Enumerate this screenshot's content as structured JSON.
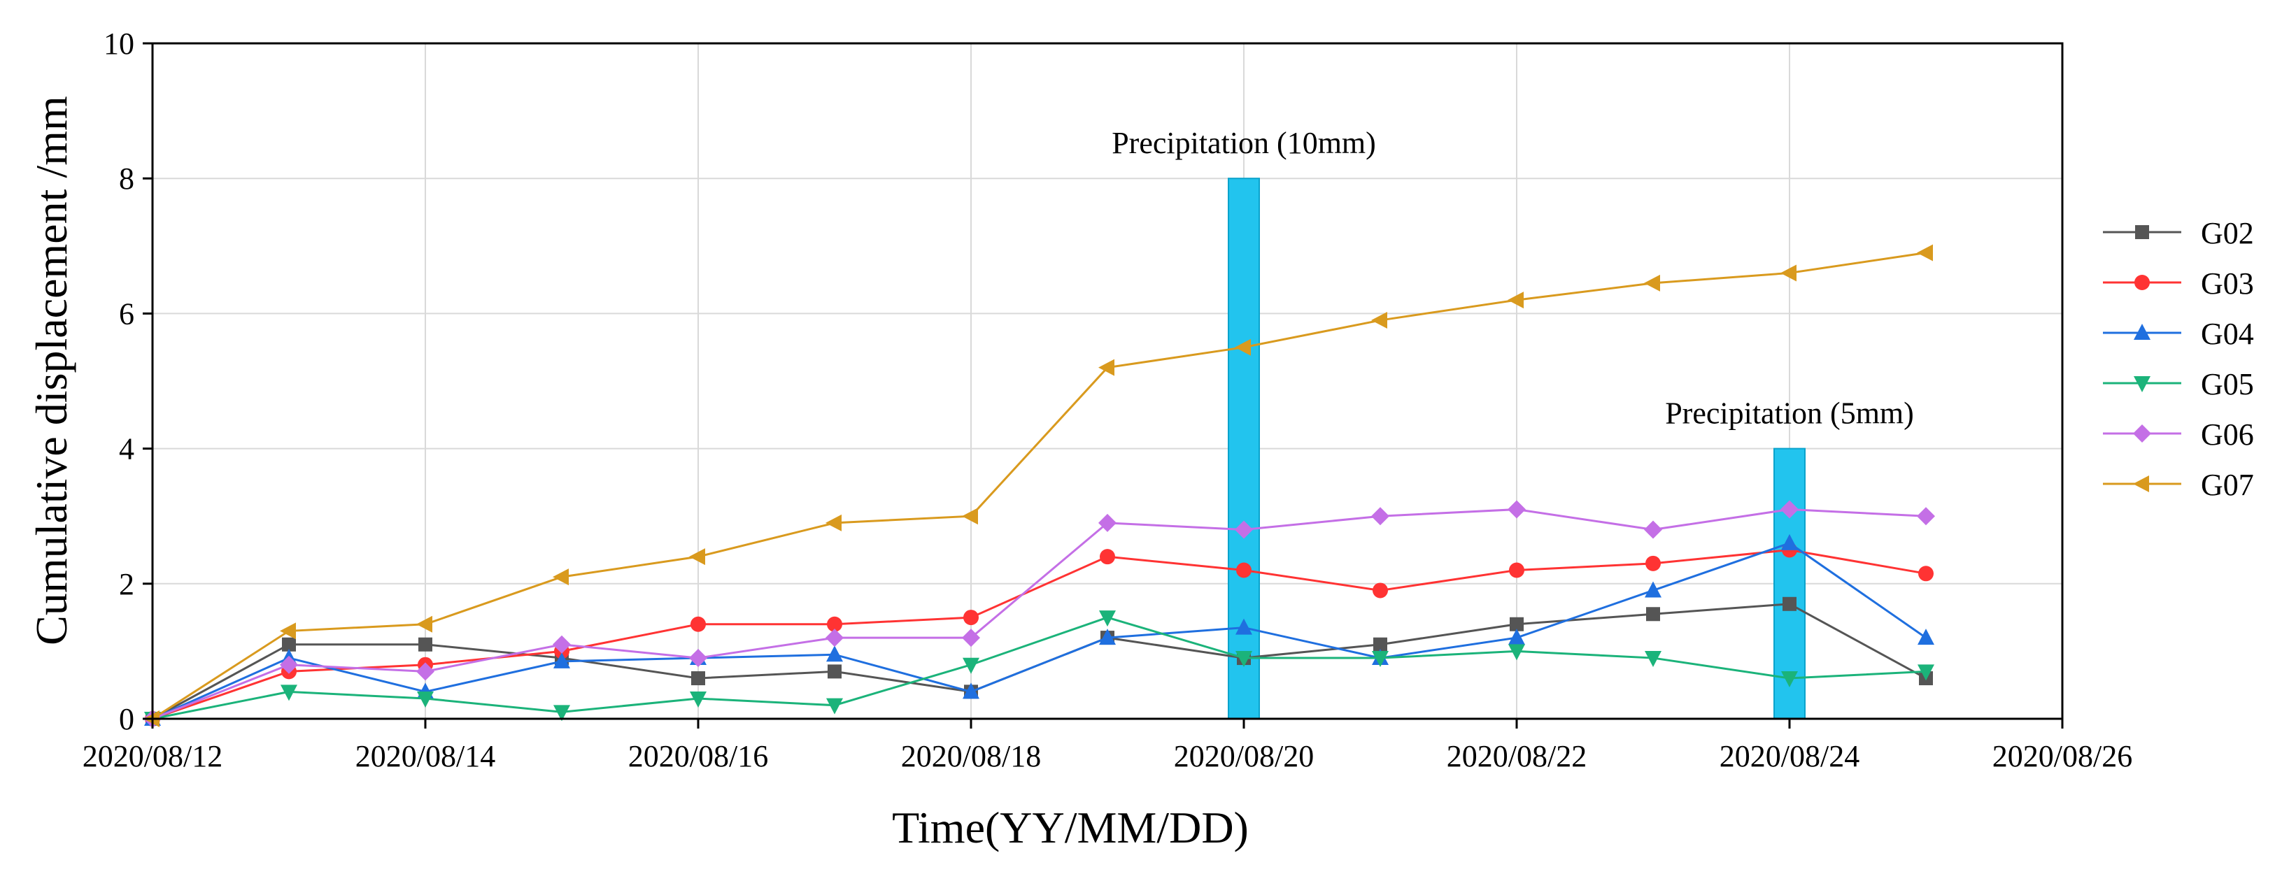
{
  "chart_data": {
    "type": "line",
    "title": "",
    "xlabel": "Time(YY/MM/DD)",
    "ylabel": "Cumulative displacement /mm",
    "xlim": [
      0,
      14
    ],
    "ylim": [
      0,
      10
    ],
    "x_ticks": [
      0,
      2,
      4,
      6,
      8,
      10,
      12,
      14
    ],
    "x_tick_labels": [
      "2020/08/12",
      "2020/08/14",
      "2020/08/16",
      "2020/08/18",
      "2020/08/20",
      "2020/08/22",
      "2020/08/24",
      "2020/08/26"
    ],
    "y_ticks": [
      0,
      2,
      4,
      6,
      8,
      10
    ],
    "y_tick_labels": [
      "0",
      "2",
      "4",
      "6",
      "8",
      "10"
    ],
    "grid": true,
    "legend_position": "right",
    "x": [
      0,
      1,
      2,
      3,
      4,
      5,
      6,
      7,
      8,
      9,
      10,
      11,
      12,
      13
    ],
    "series": [
      {
        "name": "G02",
        "color": "#555555",
        "marker": "square",
        "values": [
          0,
          1.1,
          1.1,
          0.9,
          0.6,
          0.7,
          0.4,
          1.2,
          0.9,
          1.1,
          1.4,
          1.55,
          1.7,
          0.6
        ]
      },
      {
        "name": "G03",
        "color": "#ff3333",
        "marker": "circle",
        "values": [
          0,
          0.7,
          0.8,
          1.0,
          1.4,
          1.4,
          1.5,
          2.4,
          2.2,
          1.9,
          2.2,
          2.3,
          2.5,
          2.15
        ]
      },
      {
        "name": "G04",
        "color": "#1f6fdf",
        "marker": "triangle-up",
        "values": [
          0,
          0.9,
          0.4,
          0.85,
          0.9,
          0.95,
          0.4,
          1.2,
          1.35,
          0.9,
          1.2,
          1.9,
          2.6,
          1.2
        ]
      },
      {
        "name": "G05",
        "color": "#1bb37a",
        "marker": "triangle-down",
        "values": [
          0,
          0.4,
          0.3,
          0.1,
          0.3,
          0.2,
          0.8,
          1.5,
          0.9,
          0.9,
          1.0,
          0.9,
          0.6,
          0.7
        ]
      },
      {
        "name": "G06",
        "color": "#c46fe6",
        "marker": "diamond",
        "values": [
          0,
          0.8,
          0.7,
          1.1,
          0.9,
          1.2,
          1.2,
          2.9,
          2.8,
          3.0,
          3.1,
          2.8,
          3.1,
          3.0
        ]
      },
      {
        "name": "G07",
        "color": "#d99a1e",
        "marker": "triangle-left",
        "values": [
          0,
          1.3,
          1.4,
          2.1,
          2.4,
          2.9,
          3.0,
          5.2,
          5.5,
          5.9,
          6.2,
          6.45,
          6.6,
          6.9
        ]
      }
    ],
    "precipitation": [
      {
        "label": "Precipitation (10mm)",
        "x": 8,
        "value": 8,
        "color": "#22c4ee"
      },
      {
        "label": "Precipitation (5mm)",
        "x": 12,
        "value": 4,
        "color": "#22c4ee"
      }
    ]
  }
}
